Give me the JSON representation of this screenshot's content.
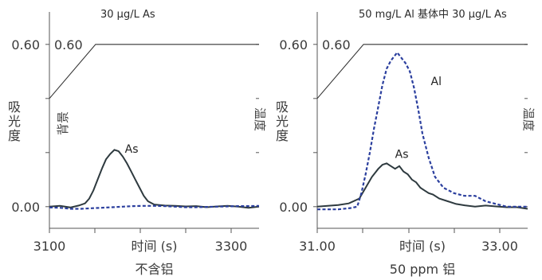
{
  "colors": {
    "as": "#2e3a3f",
    "al": "#2b3f9e",
    "bg_line": "#333333",
    "axis": "#555555"
  },
  "chart_data": [
    {
      "type": "line",
      "title": "30 µg/L As",
      "subtitle": "不含铝",
      "xlabel": "时间 (s)",
      "ylabel": "吸光度",
      "right_label": "温度",
      "left_label": "背景",
      "x_tick_labels": [
        "3100",
        "3300"
      ],
      "y_tick_labels": [
        "0.60",
        "0.00"
      ],
      "y_inner_label": "0.60",
      "ylim": [
        -0.08,
        0.72
      ],
      "xlim": [
        0,
        1
      ],
      "grid": false,
      "annotations": [
        {
          "text": "As",
          "x": 0.36,
          "y": 0.2
        }
      ],
      "series": [
        {
          "name": "As",
          "style": "solid",
          "x": [
            0.0,
            0.05,
            0.1,
            0.14,
            0.17,
            0.19,
            0.21,
            0.23,
            0.25,
            0.27,
            0.29,
            0.31,
            0.33,
            0.35,
            0.37,
            0.39,
            0.41,
            0.43,
            0.45,
            0.47,
            0.5,
            0.55,
            0.6,
            0.65,
            0.7,
            0.75,
            0.8,
            0.85,
            0.9,
            0.95,
            1.0
          ],
          "y": [
            0.0,
            0.003,
            -0.003,
            0.004,
            0.012,
            0.03,
            0.06,
            0.1,
            0.14,
            0.175,
            0.195,
            0.21,
            0.205,
            0.185,
            0.16,
            0.13,
            0.1,
            0.07,
            0.04,
            0.02,
            0.008,
            0.004,
            0.003,
            0.001,
            0.002,
            -0.002,
            0.001,
            0.003,
            0.0,
            -0.004,
            0.0
          ]
        },
        {
          "name": "背景",
          "style": "dashed",
          "x": [
            0.0,
            0.05,
            0.1,
            0.15,
            0.2,
            0.25,
            0.3,
            0.35,
            0.4,
            0.45,
            0.5,
            0.55,
            0.6,
            0.65,
            0.7,
            0.75,
            0.8,
            0.85,
            0.9,
            0.95,
            1.0
          ],
          "y": [
            -0.003,
            -0.004,
            -0.008,
            -0.008,
            -0.006,
            -0.004,
            -0.002,
            0.0,
            0.002,
            0.003,
            0.003,
            0.002,
            0.0,
            -0.002,
            -0.002,
            -0.001,
            0.0,
            0.001,
            0.002,
            0.002,
            0.003
          ]
        },
        {
          "name": "温度",
          "style": "thin",
          "x": [
            0.0,
            0.22,
            1.0
          ],
          "y": [
            0.4,
            0.6,
            0.6
          ]
        }
      ]
    },
    {
      "type": "line",
      "title": "50 mg/L Al 基体中 30 µg/L As",
      "subtitle": "50 ppm 铝",
      "xlabel": "时间 (s)",
      "ylabel": "吸光度",
      "right_label": "温度",
      "x_tick_labels": [
        "31.00",
        "33.00"
      ],
      "y_tick_labels": [
        "0.60",
        "0.00"
      ],
      "y_inner_label": "0.60",
      "ylim": [
        -0.08,
        0.72
      ],
      "xlim": [
        0,
        1
      ],
      "grid": false,
      "annotations": [
        {
          "text": "Al",
          "x": 0.54,
          "y": 0.45
        },
        {
          "text": "As",
          "x": 0.37,
          "y": 0.18
        }
      ],
      "series": [
        {
          "name": "As",
          "style": "solid",
          "x": [
            0.0,
            0.05,
            0.1,
            0.15,
            0.2,
            0.23,
            0.26,
            0.29,
            0.31,
            0.33,
            0.35,
            0.37,
            0.39,
            0.41,
            0.43,
            0.45,
            0.47,
            0.49,
            0.51,
            0.53,
            0.55,
            0.58,
            0.62,
            0.66,
            0.7,
            0.75,
            0.8,
            0.85,
            0.9,
            0.95,
            1.0
          ],
          "y": [
            0.0,
            0.003,
            0.006,
            0.012,
            0.03,
            0.07,
            0.11,
            0.14,
            0.155,
            0.16,
            0.15,
            0.14,
            0.15,
            0.13,
            0.12,
            0.1,
            0.09,
            0.07,
            0.06,
            0.05,
            0.045,
            0.03,
            0.02,
            0.01,
            0.005,
            0.0,
            0.004,
            0.001,
            -0.002,
            -0.002,
            -0.008
          ]
        },
        {
          "name": "Al",
          "style": "dashed",
          "x": [
            0.0,
            0.1,
            0.16,
            0.19,
            0.21,
            0.23,
            0.25,
            0.27,
            0.29,
            0.31,
            0.33,
            0.35,
            0.37,
            0.38,
            0.4,
            0.42,
            0.44,
            0.46,
            0.48,
            0.5,
            0.53,
            0.56,
            0.6,
            0.65,
            0.7,
            0.75,
            0.8,
            0.85,
            0.9,
            1.0
          ],
          "y": [
            -0.01,
            -0.01,
            -0.005,
            0.0,
            0.05,
            0.12,
            0.2,
            0.29,
            0.37,
            0.45,
            0.51,
            0.54,
            0.56,
            0.57,
            0.55,
            0.53,
            0.5,
            0.44,
            0.36,
            0.27,
            0.18,
            0.11,
            0.07,
            0.05,
            0.04,
            0.04,
            0.02,
            0.01,
            0.0,
            0.0
          ]
        },
        {
          "name": "温度",
          "style": "thin",
          "x": [
            0.0,
            0.22,
            1.0
          ],
          "y": [
            0.4,
            0.6,
            0.6
          ]
        }
      ]
    }
  ]
}
